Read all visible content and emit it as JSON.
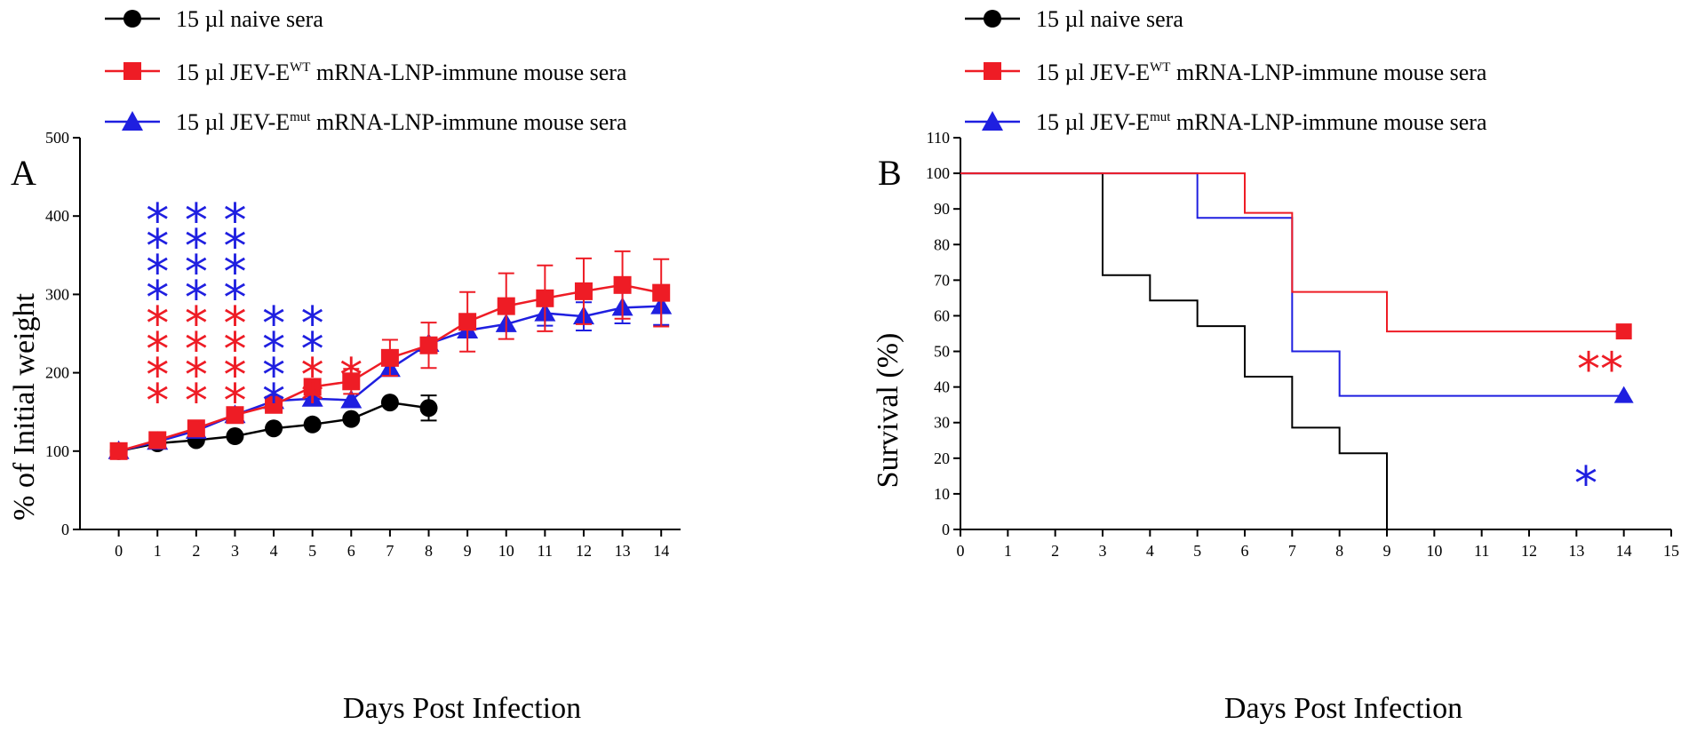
{
  "legend": {
    "naive": {
      "prefix": "15 µl naive sera",
      "sup": "",
      "suffix": ""
    },
    "wt": {
      "prefix": "15 µl JEV-E",
      "sup": "WT",
      "suffix": " mRNA-LNP-immune mouse sera"
    },
    "mut": {
      "prefix": "15 µl JEV-E",
      "sup": "mut",
      "suffix": " mRNA-LNP-immune mouse sera"
    }
  },
  "colors": {
    "naive": "#000000",
    "wt": "#ee1c25",
    "mut": "#1f1fe0"
  },
  "chart_data": [
    {
      "panel": "A",
      "type": "line",
      "xlabel": "Days Post Infection",
      "ylabel": "% of Initial weight",
      "xlim": [
        -1,
        14.5
      ],
      "ylim": [
        0,
        500
      ],
      "xticks": [
        0,
        1,
        2,
        3,
        4,
        5,
        6,
        7,
        8,
        9,
        10,
        11,
        12,
        13,
        14
      ],
      "yticks": [
        0,
        100,
        200,
        300,
        400,
        500
      ],
      "series": [
        {
          "name": "naive",
          "marker": "circle",
          "x": [
            0,
            1,
            2,
            3,
            4,
            5,
            6,
            7,
            8
          ],
          "y": [
            100,
            110,
            114,
            119,
            129,
            134,
            141,
            162,
            155
          ],
          "err": [
            0,
            0,
            0,
            0,
            0,
            0,
            0,
            0,
            16
          ]
        },
        {
          "name": "wt",
          "marker": "square",
          "x": [
            0,
            1,
            2,
            3,
            4,
            5,
            6,
            7,
            8,
            9,
            10,
            11,
            12,
            13,
            14
          ],
          "y": [
            100,
            114,
            129,
            146,
            159,
            182,
            189,
            219,
            235,
            265,
            285,
            295,
            304,
            312,
            302
          ],
          "err": [
            0,
            0,
            0,
            0,
            0,
            0,
            16,
            23,
            29,
            38,
            42,
            42,
            42,
            43,
            43
          ]
        },
        {
          "name": "mut",
          "marker": "triangle",
          "x": [
            0,
            1,
            2,
            3,
            4,
            5,
            6,
            7,
            8,
            9,
            10,
            11,
            12,
            13,
            14
          ],
          "y": [
            100,
            112,
            126,
            146,
            164,
            167,
            165,
            205,
            237,
            254,
            262,
            276,
            272,
            283,
            285
          ],
          "err": [
            0,
            0,
            0,
            0,
            0,
            0,
            0,
            0,
            0,
            0,
            0,
            16,
            18,
            20,
            24
          ]
        }
      ],
      "annotations": [
        {
          "x": 1,
          "mut": 4,
          "wt": 4
        },
        {
          "x": 2,
          "mut": 4,
          "wt": 4
        },
        {
          "x": 3,
          "mut": 4,
          "wt": 4
        },
        {
          "x": 4,
          "mut": 4,
          "wt": 0
        },
        {
          "x": 5,
          "mut": 2,
          "wt": 2
        },
        {
          "x": 6,
          "mut": 0,
          "wt": 1
        }
      ]
    },
    {
      "panel": "B",
      "type": "line",
      "step": true,
      "xlabel": "Days Post Infection",
      "ylabel": "Survival (%)",
      "xlim": [
        0,
        15
      ],
      "ylim": [
        0,
        110
      ],
      "xticks": [
        0,
        1,
        2,
        3,
        4,
        5,
        6,
        7,
        8,
        9,
        10,
        11,
        12,
        13,
        14,
        15
      ],
      "yticks": [
        0,
        10,
        20,
        30,
        40,
        50,
        60,
        70,
        80,
        90,
        100,
        110
      ],
      "series": [
        {
          "name": "naive",
          "x": [
            0,
            3,
            4,
            5,
            6,
            7,
            8,
            9
          ],
          "y": [
            100,
            71.4,
            64.3,
            57.1,
            42.9,
            28.6,
            21.4,
            0
          ],
          "end": 9,
          "endMarker": false
        },
        {
          "name": "wt",
          "x": [
            0,
            6,
            7,
            9
          ],
          "y": [
            100,
            88.9,
            66.7,
            55.6
          ],
          "end": 14,
          "endMarker": "square"
        },
        {
          "name": "mut",
          "x": [
            0,
            5,
            7,
            8
          ],
          "y": [
            100,
            87.5,
            50,
            37.5
          ],
          "end": 14,
          "endMarker": "triangle"
        }
      ],
      "annotations": [
        {
          "text": "**",
          "color": "wt",
          "x": 13.5,
          "y": 46
        },
        {
          "text": "*",
          "color": "mut",
          "x": 13.2,
          "y": 14
        }
      ]
    }
  ]
}
